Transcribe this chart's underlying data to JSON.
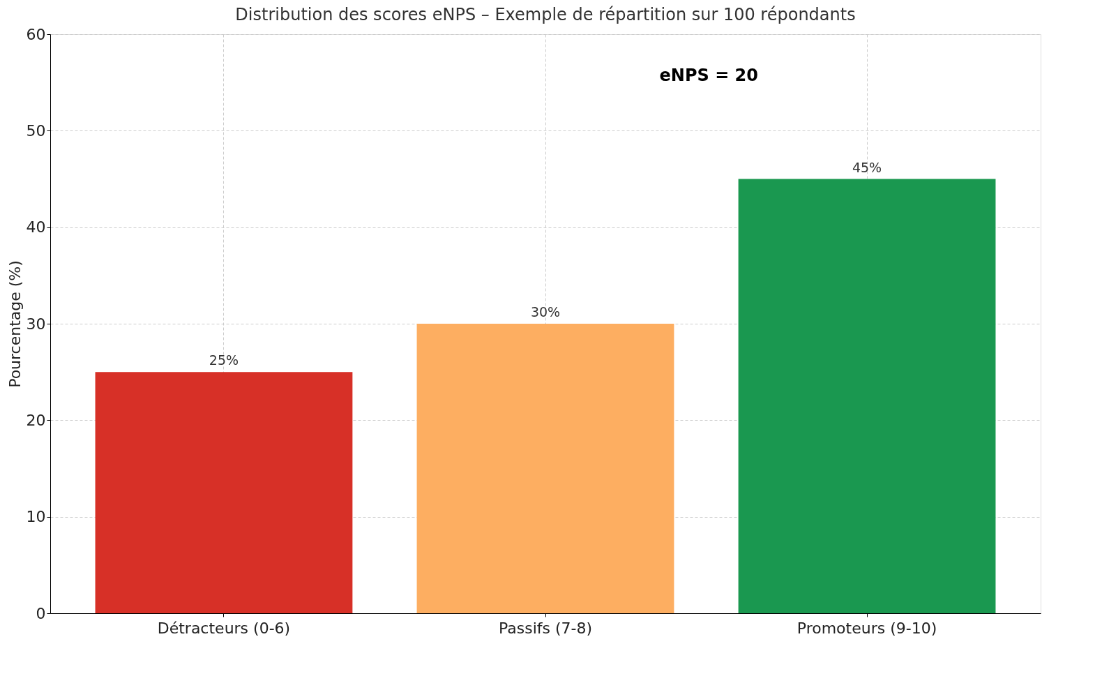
{
  "chart_data": {
    "type": "bar",
    "title": "Distribution des scores eNPS – Exemple de répartition sur 100 répondants",
    "ylabel": "Pourcentage (%)",
    "categories": [
      "Détracteurs (0-6)",
      "Passifs (7-8)",
      "Promoteurs (9-10)"
    ],
    "values": [
      25,
      30,
      45
    ],
    "colors": [
      "#d73027",
      "#fdae61",
      "#1a9850"
    ],
    "value_labels": [
      "25%",
      "30%",
      "45%"
    ],
    "annotations": [
      "eNPS = 20"
    ],
    "ylim": [
      0,
      60
    ],
    "yticks": [
      0,
      10,
      20,
      30,
      40,
      50,
      60
    ],
    "grid": true
  }
}
